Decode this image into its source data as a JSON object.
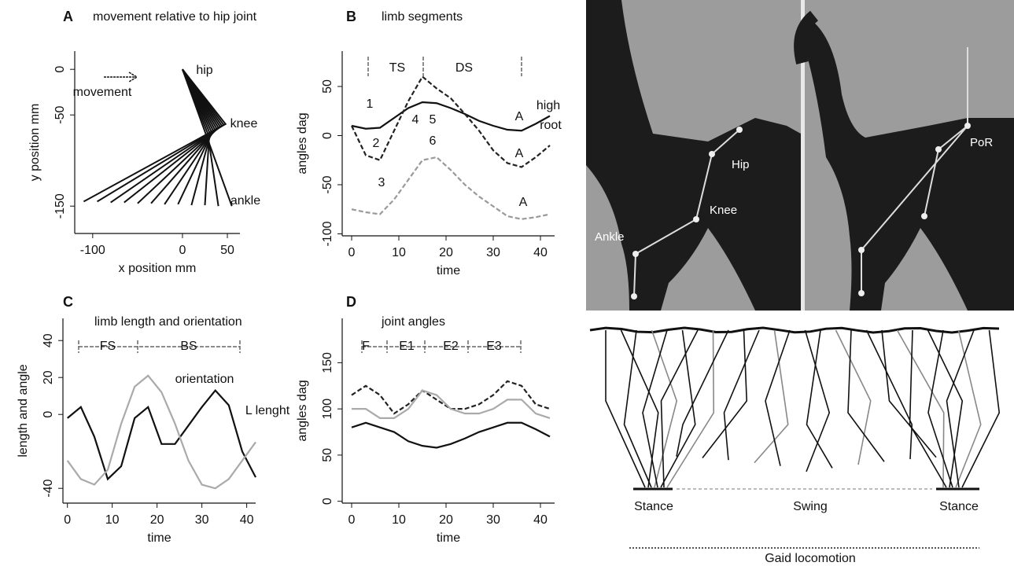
{
  "chart_data": [
    {
      "type": "stick",
      "panel": "A",
      "title": "movement relative to hip joint",
      "xlabel": "x position mm",
      "ylabel": "y position mm",
      "xlim": [
        -120,
        64
      ],
      "ylim": [
        -180,
        20
      ],
      "xticks": [
        -100,
        0,
        50
      ],
      "yticks": [
        0,
        -50,
        -150
      ],
      "annotations": [
        "movement"
      ],
      "series": [
        {
          "name": "hip",
          "x": [
            0,
            0,
            0,
            0,
            0,
            0,
            0,
            0,
            0,
            0,
            0,
            0
          ],
          "y": [
            0,
            0,
            0,
            0,
            0,
            0,
            0,
            0,
            0,
            0,
            0,
            0
          ]
        },
        {
          "name": "knee",
          "x": [
            48,
            46,
            44,
            42,
            40,
            38,
            36,
            34,
            32,
            30,
            28,
            26
          ],
          "y": [
            -60,
            -61,
            -62,
            -63,
            -64,
            -65,
            -66,
            -67,
            -68,
            -69,
            -70,
            -71
          ]
        },
        {
          "name": "ankle",
          "x": [
            -110,
            -95,
            -80,
            -65,
            -50,
            -35,
            -20,
            -5,
            10,
            25,
            40,
            55
          ],
          "y": [
            -145,
            -145,
            -146,
            -146,
            -147,
            -147,
            -148,
            -148,
            -149,
            -149,
            -150,
            -150
          ]
        }
      ]
    },
    {
      "type": "line",
      "panel": "B",
      "title": "limb segments",
      "xlabel": "time",
      "ylabel": "angles dag",
      "xlim": [
        -2,
        43
      ],
      "ylim": [
        -102,
        86
      ],
      "xticks": [
        0,
        10,
        20,
        30,
        40
      ],
      "yticks": [
        -100,
        -50,
        0,
        50
      ],
      "annotations": [
        "TS",
        "DS",
        "1",
        "2",
        "3",
        "4",
        "5",
        "6",
        "A",
        "A",
        "A"
      ],
      "x": [
        0,
        3,
        6,
        9,
        12,
        15,
        18,
        21,
        24,
        27,
        30,
        33,
        36,
        39,
        42
      ],
      "series": [
        {
          "name": "high",
          "color": "#111111",
          "dash": false,
          "values": [
            10,
            7,
            8,
            18,
            28,
            34,
            33,
            28,
            22,
            15,
            10,
            6,
            5,
            12,
            20
          ]
        },
        {
          "name": "root",
          "color": "#222222",
          "dash": true,
          "values": [
            10,
            -20,
            -25,
            5,
            35,
            60,
            48,
            38,
            22,
            5,
            -15,
            -28,
            -32,
            -22,
            -10
          ]
        },
        {
          "color": "#999999",
          "dash": true,
          "values": [
            -75,
            -78,
            -80,
            -65,
            -45,
            -25,
            -22,
            -35,
            -50,
            -62,
            -72,
            -82,
            -85,
            -83,
            -80
          ]
        }
      ]
    },
    {
      "type": "line",
      "panel": "C",
      "title": "limb length and orientation",
      "xlabel": "time",
      "ylabel": "length and angle",
      "xlim": [
        -1,
        42
      ],
      "ylim": [
        -48,
        52
      ],
      "xticks": [
        0,
        10,
        20,
        30,
        40
      ],
      "yticks": [
        -40,
        0,
        20,
        40
      ],
      "annotations": [
        "FS",
        "BS"
      ],
      "x": [
        0,
        3,
        6,
        9,
        12,
        15,
        18,
        21,
        24,
        27,
        30,
        33,
        36,
        39,
        42
      ],
      "series": [
        {
          "name": "L lenght",
          "color": "#111111",
          "dash": false,
          "values": [
            -2,
            4,
            -12,
            -35,
            -28,
            -2,
            4,
            -16,
            -16,
            -6,
            4,
            13,
            5,
            -20,
            -34
          ]
        },
        {
          "name": "orientation",
          "color": "#aaaaaa",
          "dash": false,
          "values": [
            -25,
            -35,
            -38,
            -30,
            -5,
            15,
            21,
            12,
            -5,
            -25,
            -38,
            -40,
            -35,
            -25,
            -15
          ]
        }
      ]
    },
    {
      "type": "line",
      "panel": "D",
      "title": "joint angles",
      "xlabel": "time",
      "ylabel": "angles dag",
      "xlim": [
        -2,
        43
      ],
      "ylim": [
        -2,
        198
      ],
      "xticks": [
        0,
        10,
        20,
        30,
        40
      ],
      "yticks": [
        0,
        50,
        100,
        150
      ],
      "annotations": [
        "F",
        "E1",
        "E2",
        "E3"
      ],
      "x": [
        0,
        3,
        6,
        9,
        12,
        15,
        18,
        21,
        24,
        27,
        30,
        33,
        36,
        39,
        42
      ],
      "series": [
        {
          "color": "#222222",
          "dash": true,
          "values": [
            115,
            125,
            115,
            95,
            105,
            120,
            110,
            100,
            100,
            105,
            115,
            130,
            125,
            105,
            100
          ]
        },
        {
          "color": "#aaaaaa",
          "dash": false,
          "values": [
            100,
            100,
            90,
            90,
            100,
            120,
            115,
            100,
            95,
            95,
            100,
            110,
            110,
            95,
            90
          ]
        },
        {
          "color": "#111111",
          "dash": false,
          "values": [
            80,
            85,
            80,
            75,
            65,
            60,
            58,
            62,
            68,
            75,
            80,
            85,
            85,
            78,
            70
          ]
        }
      ]
    }
  ],
  "figure_panels": {
    "photo_labels": [
      "Hip",
      "Knee",
      "Ankle",
      "PoR"
    ],
    "phase_labels": [
      "Stance",
      "Swing",
      "Stance"
    ],
    "caption": "Gaid locomotion"
  }
}
